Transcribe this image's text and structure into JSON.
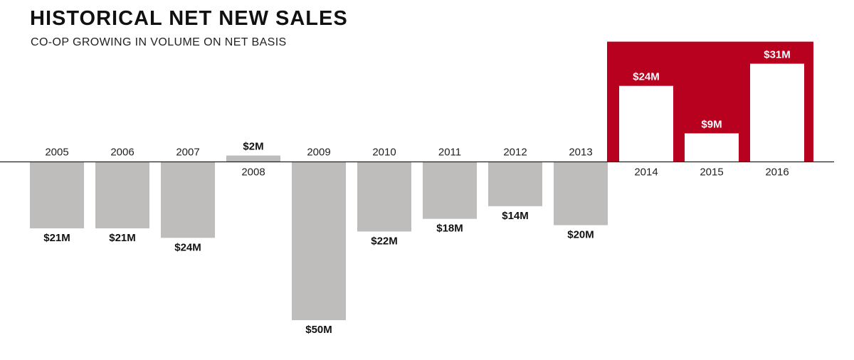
{
  "title": "HISTORICAL NET NEW SALES",
  "subtitle": "CO-OP GROWING IN VOLUME ON NET BASIS",
  "colors": {
    "negative_bar": "#bfbcbc",
    "positive_bar_gray": "#bfbcbc",
    "highlight_panel": "#b8001f",
    "highlight_bar": "#ffffff",
    "axis": "#222222",
    "text_dark": "#111111",
    "text_light": "#ffffff"
  },
  "chart_data": {
    "type": "bar",
    "title": "HISTORICAL NET NEW SALES",
    "subtitle": "CO-OP GROWING IN VOLUME ON NET BASIS",
    "categories": [
      "2005",
      "2006",
      "2007",
      "2008",
      "2009",
      "2010",
      "2011",
      "2012",
      "2013",
      "2014",
      "2015",
      "2016"
    ],
    "values": [
      -21,
      -21,
      -24,
      2,
      -50,
      -22,
      -18,
      -14,
      -20,
      24,
      9,
      31
    ],
    "value_labels": [
      "$21M",
      "$21M",
      "$24M",
      "$2M",
      "$50M",
      "$22M",
      "$18M",
      "$14M",
      "$20M",
      "$24M",
      "$9M",
      "$31M"
    ],
    "unit": "$M",
    "highlighted_categories": [
      "2014",
      "2015",
      "2016"
    ],
    "xlabel": "",
    "ylabel": "",
    "ylim": [
      -50,
      35
    ],
    "grid": false,
    "legend": "none"
  }
}
